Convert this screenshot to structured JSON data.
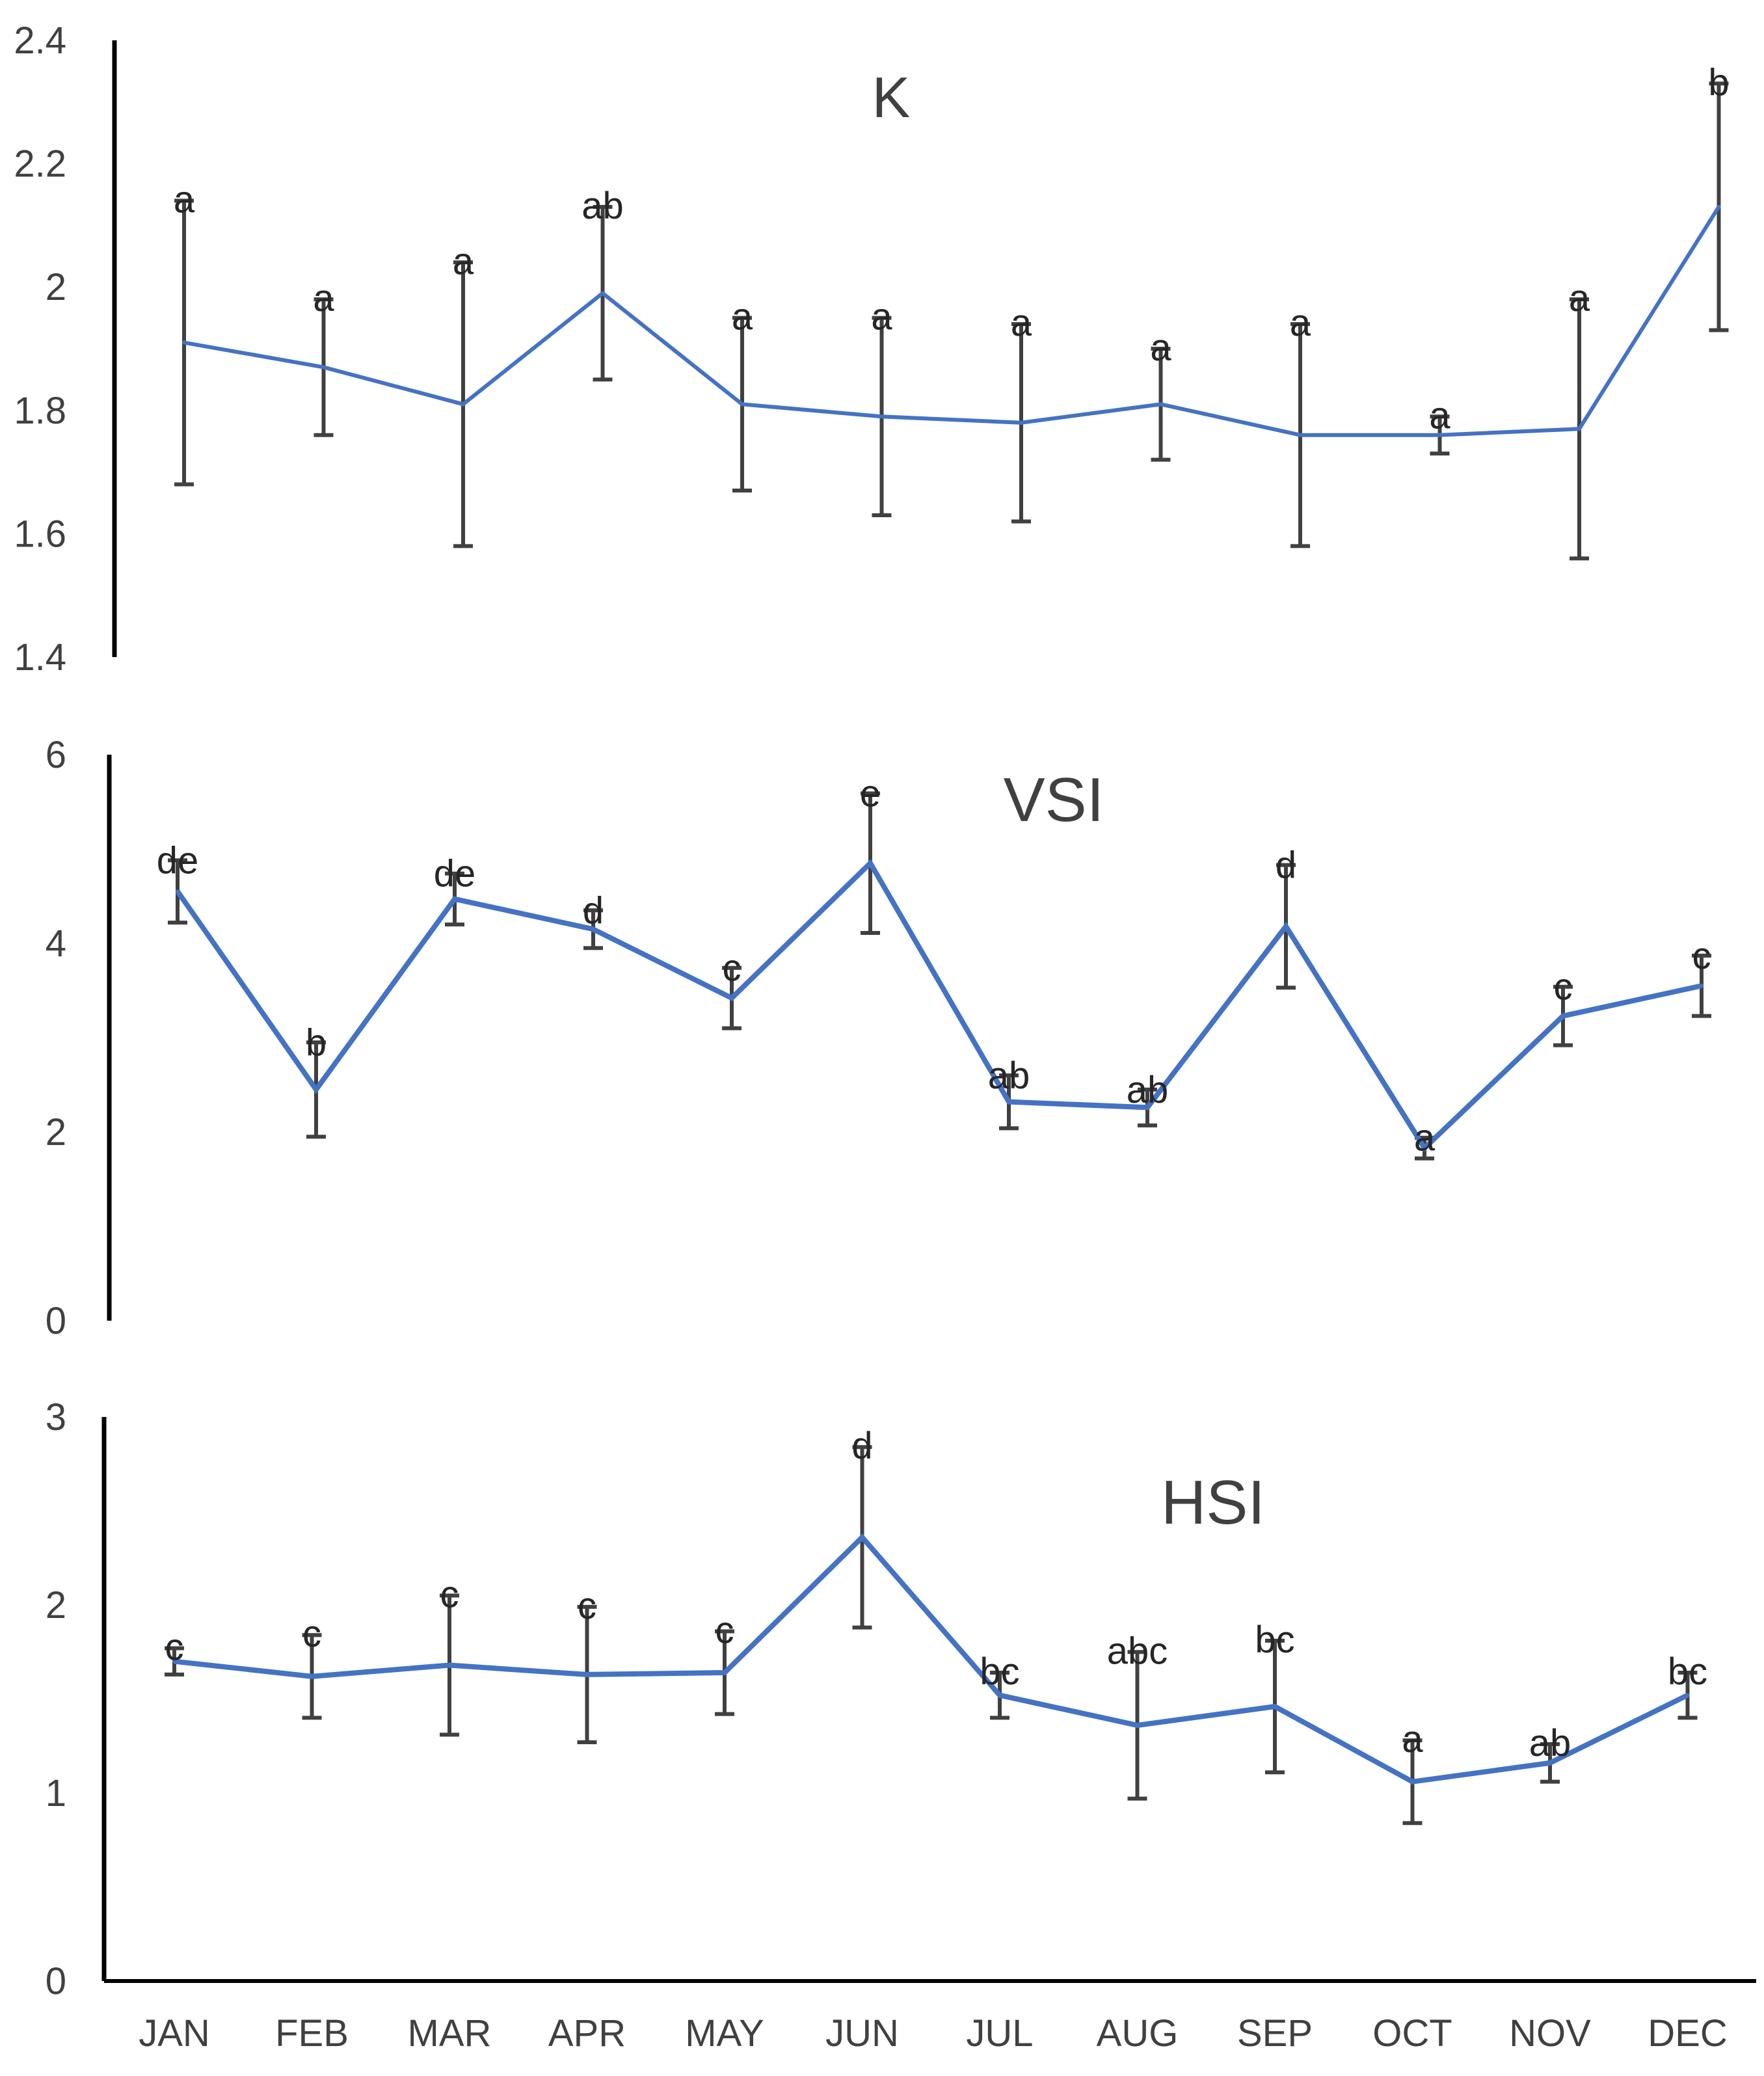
{
  "chart_data": [
    {
      "type": "line",
      "title": "K",
      "ylim": [
        1.4,
        2.4
      ],
      "y_ticks": [
        "1.4",
        "1.6",
        "1.8",
        "2",
        "2.2",
        "2.4"
      ],
      "y_tick_values": [
        1.4,
        1.6,
        1.8,
        2.0,
        2.2,
        2.4
      ],
      "xlabel": "",
      "ylabel": "",
      "series": [
        {
          "name": "K",
          "color": "#4472C4",
          "values": [
            1.91,
            1.87,
            1.81,
            1.99,
            1.81,
            1.79,
            1.78,
            1.81,
            1.76,
            1.76,
            1.77,
            2.13
          ],
          "error": [
            0.23,
            0.11,
            0.23,
            0.14,
            0.14,
            0.16,
            0.16,
            0.09,
            0.18,
            0.03,
            0.21,
            0.2
          ],
          "labels": [
            "a",
            "a",
            "a",
            "ab",
            "a",
            "a",
            "a",
            "a",
            "a",
            "a",
            "a",
            "b"
          ]
        }
      ]
    },
    {
      "type": "line",
      "title": "VSI",
      "ylim": [
        0,
        6
      ],
      "y_ticks": [
        "0",
        "2",
        "4",
        "6"
      ],
      "y_tick_values": [
        0,
        2,
        4,
        6
      ],
      "xlabel": "",
      "ylabel": "",
      "series": [
        {
          "name": "VSI",
          "color": "#4472C4",
          "values": [
            4.55,
            2.45,
            4.47,
            4.15,
            3.42,
            4.85,
            2.32,
            2.26,
            4.18,
            1.83,
            3.23,
            3.55
          ],
          "error": [
            0.33,
            0.5,
            0.27,
            0.2,
            0.32,
            0.74,
            0.28,
            0.19,
            0.65,
            0.11,
            0.31,
            0.32
          ],
          "labels": [
            "de",
            "b",
            "de",
            "d",
            "c",
            "e",
            "ab",
            "ab",
            "d",
            "a",
            "c",
            "c"
          ]
        }
      ]
    },
    {
      "type": "line",
      "title": "HSI",
      "ylim": [
        0,
        3
      ],
      "y_ticks": [
        "0",
        "1",
        "2",
        "3"
      ],
      "y_tick_values": [
        0,
        1,
        2,
        3
      ],
      "xlabel": "",
      "ylabel": "",
      "series": [
        {
          "name": "HSI",
          "color": "#4472C4",
          "values": [
            1.7,
            1.62,
            1.68,
            1.63,
            1.64,
            2.36,
            1.52,
            1.36,
            1.46,
            1.06,
            1.16,
            1.52
          ],
          "error": [
            0.07,
            0.22,
            0.37,
            0.36,
            0.22,
            0.48,
            0.12,
            0.39,
            0.35,
            0.22,
            0.1,
            0.12
          ],
          "labels": [
            "c",
            "c",
            "c",
            "c",
            "c",
            "d",
            "bc",
            "abc",
            "bc",
            "a",
            "ab",
            "bc"
          ]
        }
      ]
    }
  ],
  "categories": [
    "JAN",
    "FEB",
    "MAR",
    "APR",
    "MAY",
    "JUN",
    "JUL",
    "AUG",
    "SEP",
    "OCT",
    "NOV",
    "DEC"
  ],
  "colors": {
    "line": "#4472C4",
    "error_bar": "#404040",
    "axis": "#000000",
    "text": "#404040"
  }
}
